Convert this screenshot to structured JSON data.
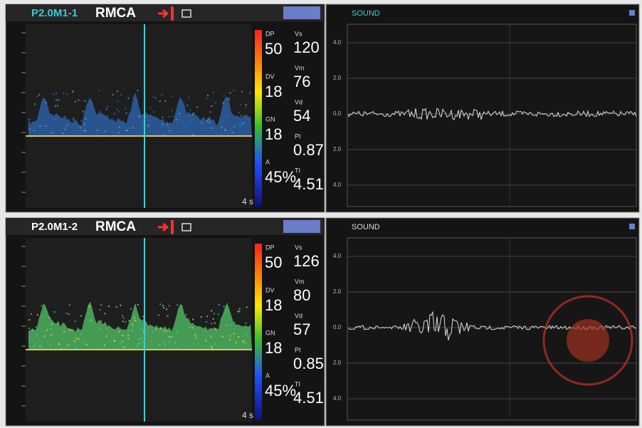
{
  "panels": [
    {
      "probe": "P2.0M1-1",
      "vessel": "RMCA",
      "time": "4 s",
      "scale": [
        {
          "label": "DP",
          "value": "50"
        },
        {
          "label": "DV",
          "value": "18"
        },
        {
          "label": "GN",
          "value": "18"
        },
        {
          "label": "A",
          "value": "45%"
        }
      ],
      "measurements": [
        {
          "label": "Vs",
          "value": "120"
        },
        {
          "label": "Vm",
          "value": "76"
        },
        {
          "label": "Vd",
          "value": "54"
        },
        {
          "label": "PI",
          "value": "0.87"
        },
        {
          "label": "TI",
          "value": "4.51"
        }
      ],
      "sound": {
        "title": "SOUND",
        "yticks": [
          "4.0",
          "2.0",
          "0.0",
          "2.0",
          "4.0"
        ]
      }
    },
    {
      "probe": "P2.0M1-2",
      "vessel": "RMCA",
      "time": "4 s",
      "scale": [
        {
          "label": "DP",
          "value": "50"
        },
        {
          "label": "DV",
          "value": "18"
        },
        {
          "label": "GN",
          "value": "18"
        },
        {
          "label": "A",
          "value": "45%"
        }
      ],
      "measurements": [
        {
          "label": "Vs",
          "value": "126"
        },
        {
          "label": "Vm",
          "value": "80"
        },
        {
          "label": "Vd",
          "value": "57"
        },
        {
          "label": "PI",
          "value": "0.85"
        },
        {
          "label": "TI",
          "value": "4.51"
        }
      ],
      "sound": {
        "title": "SOUND",
        "yticks": [
          "4.0",
          "2.0",
          "0.0",
          "2.0",
          "4.0"
        ]
      }
    }
  ]
}
